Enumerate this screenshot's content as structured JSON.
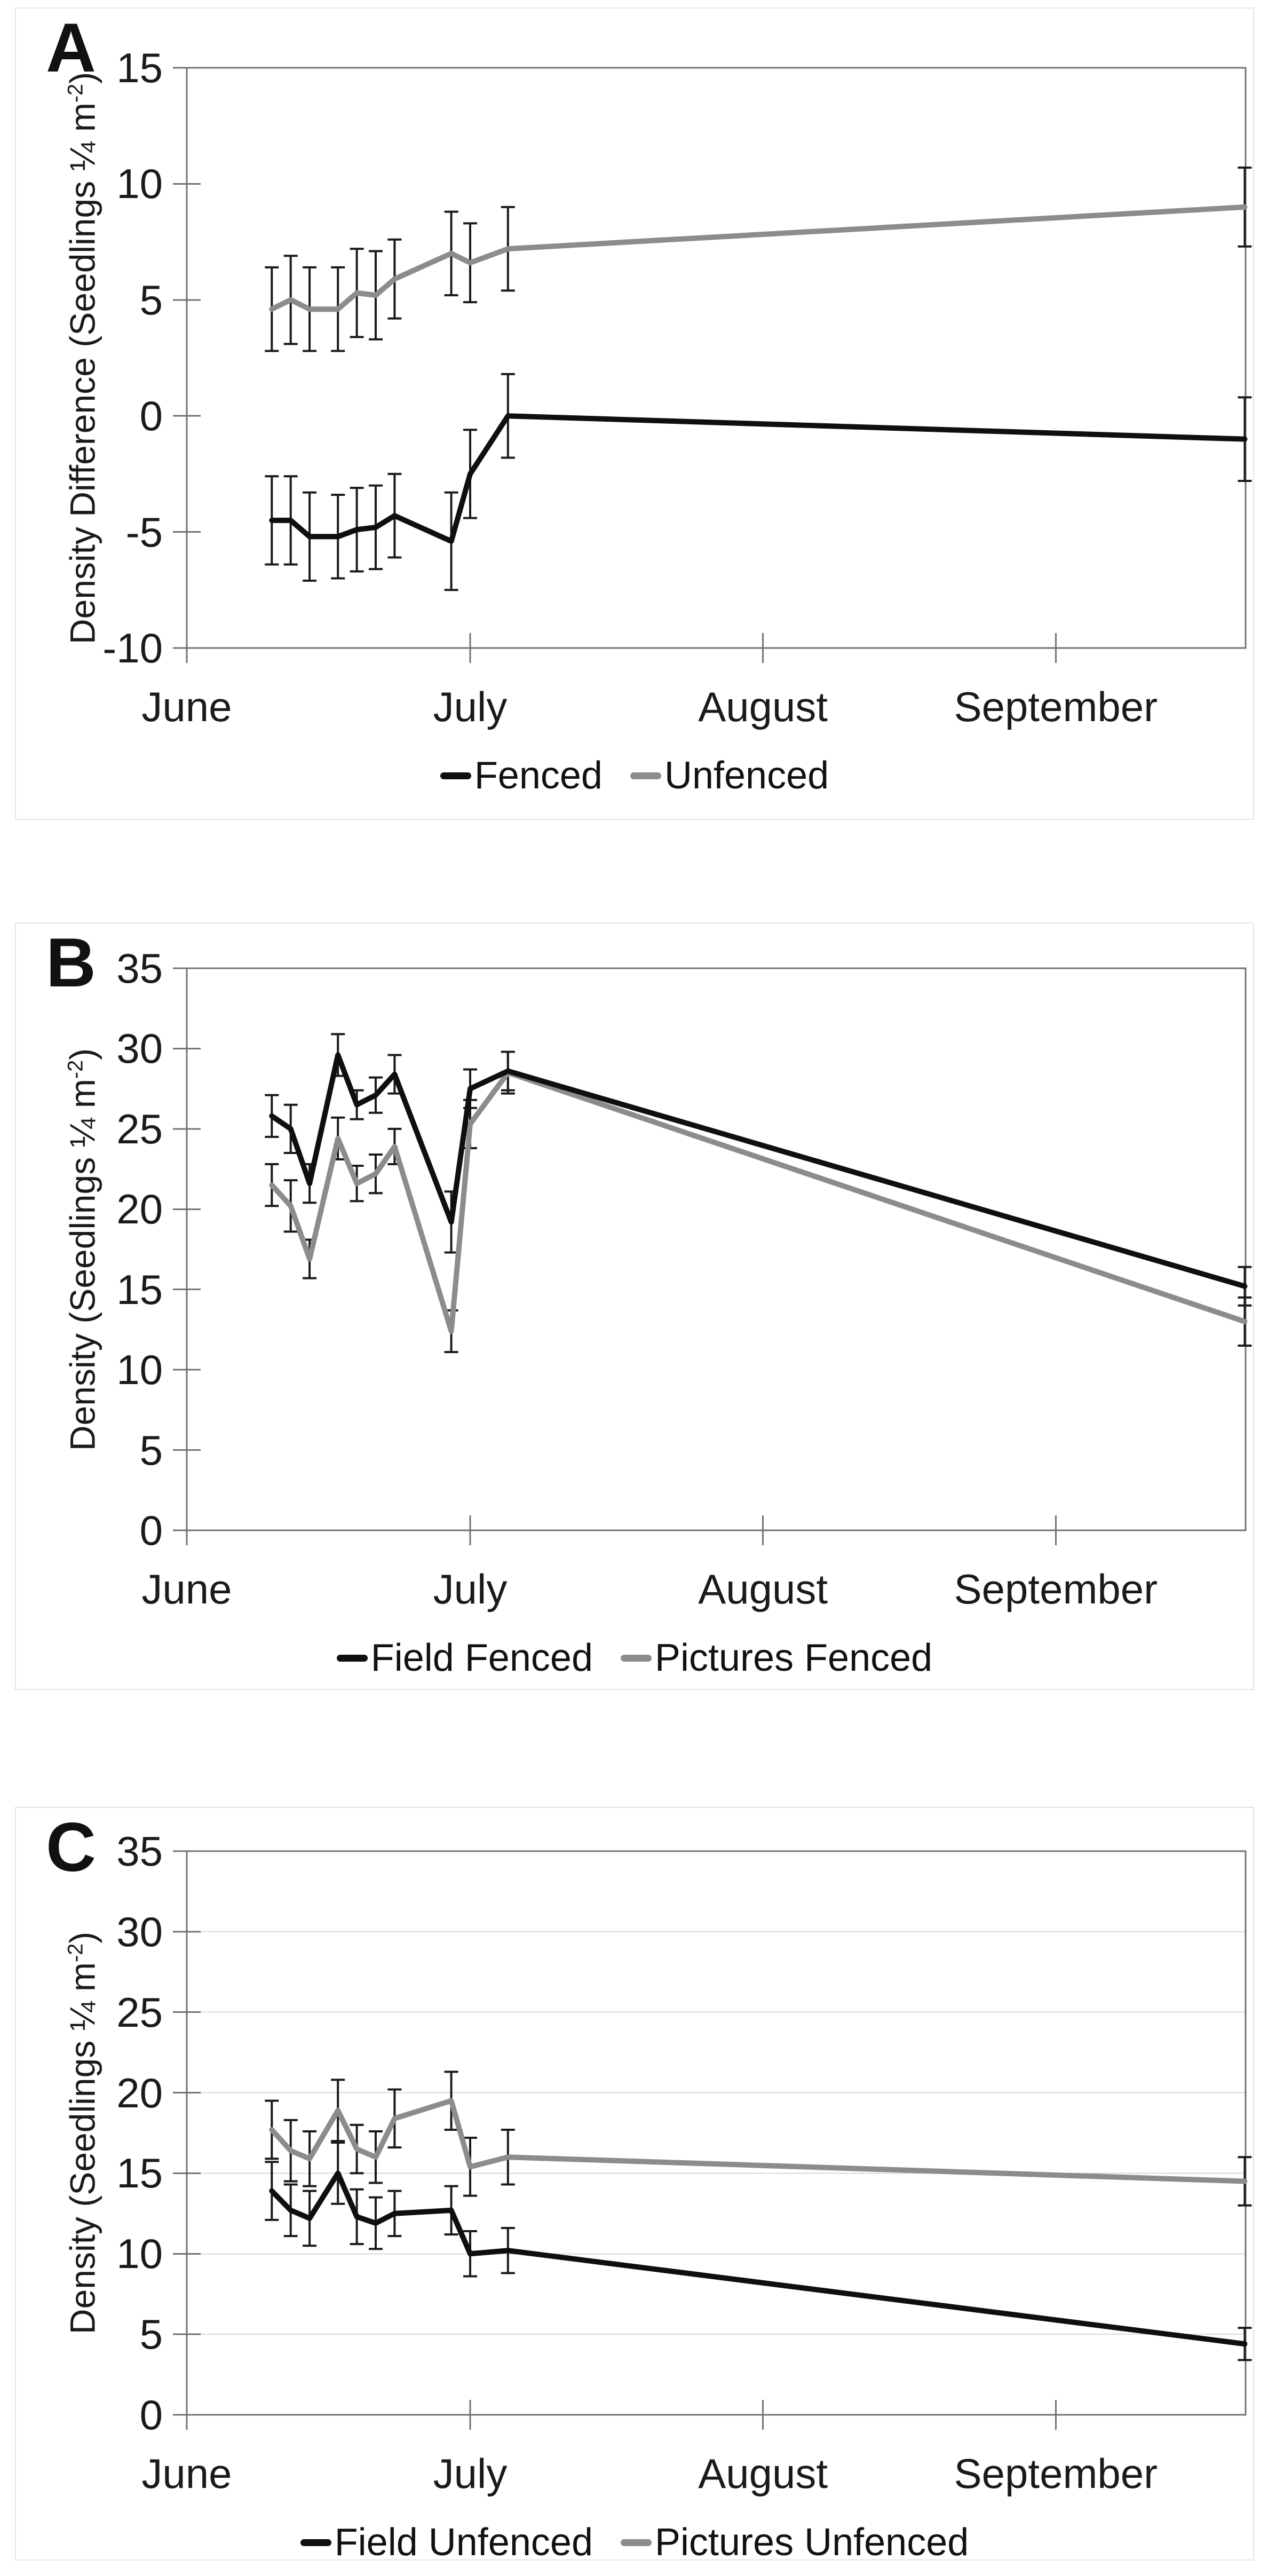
{
  "colors": {
    "series_black": "#0f0f0f",
    "series_gray": "#8c8c8c",
    "error_bar": "#1a1a1a",
    "axis_frame": "#737373",
    "gridline": "#d9d9d9",
    "panel_border": "#e4e4e4"
  },
  "chart_data": [
    {
      "panel_label": "A",
      "type": "line",
      "title": "",
      "xlabel": "",
      "ylabel": "Density Difference (Seedlings ¼ m⁻²)",
      "ylabel_prefix": "Density Difference (Seedlings ¼ m",
      "ylabel_sup": "-2",
      "ylabel_suffix": ")",
      "ylim": [
        -10,
        15
      ],
      "y_ticks": [
        15,
        10,
        5,
        0,
        -5,
        -10
      ],
      "x_tick_labels": [
        "June",
        "July",
        "August",
        "September"
      ],
      "x_tick_days": [
        0,
        30,
        61,
        92
      ],
      "x_days": [
        9,
        11,
        13,
        16,
        18,
        20,
        22,
        28,
        30,
        34,
        112
      ],
      "grid_values": [],
      "legend_position": "bottom",
      "series": [
        {
          "name": "Fenced",
          "color": "#0f0f0f",
          "values": [
            -4.5,
            -4.5,
            -5.2,
            -5.2,
            -4.9,
            -4.8,
            -4.3,
            -5.4,
            -2.5,
            0.0,
            -1.0
          ],
          "errors": [
            1.9,
            1.9,
            1.9,
            1.8,
            1.8,
            1.8,
            1.8,
            2.1,
            1.9,
            1.8,
            1.8
          ]
        },
        {
          "name": "Unfenced",
          "color": "#8c8c8c",
          "values": [
            4.6,
            5.0,
            4.6,
            4.6,
            5.3,
            5.2,
            5.9,
            7.0,
            6.6,
            7.2,
            9.0
          ],
          "errors": [
            1.8,
            1.9,
            1.8,
            1.8,
            1.9,
            1.9,
            1.7,
            1.8,
            1.7,
            1.8,
            1.7
          ]
        }
      ]
    },
    {
      "panel_label": "B",
      "type": "line",
      "title": "",
      "xlabel": "",
      "ylabel": "Density (Seedlings ¼ m⁻²)",
      "ylabel_prefix": "Density (Seedlings ¼ m",
      "ylabel_sup": "-2",
      "ylabel_suffix": ")",
      "ylim": [
        0,
        35
      ],
      "y_ticks": [
        35,
        30,
        25,
        20,
        15,
        10,
        5,
        0
      ],
      "x_tick_labels": [
        "June",
        "July",
        "August",
        "September"
      ],
      "x_tick_days": [
        0,
        30,
        61,
        92
      ],
      "x_days": [
        9,
        11,
        13,
        16,
        18,
        20,
        22,
        28,
        30,
        34,
        112
      ],
      "grid_values": [],
      "legend_position": "bottom",
      "series": [
        {
          "name": "Field Fenced",
          "color": "#0f0f0f",
          "values": [
            25.8,
            25.0,
            21.6,
            29.6,
            26.5,
            27.1,
            28.4,
            19.2,
            27.5,
            28.6,
            15.2
          ],
          "errors": [
            1.3,
            1.5,
            1.2,
            1.3,
            0.9,
            1.1,
            1.2,
            1.9,
            1.2,
            1.2,
            1.2
          ]
        },
        {
          "name": "Pictures Fenced",
          "color": "#8c8c8c",
          "values": [
            21.5,
            20.2,
            16.9,
            24.4,
            21.6,
            22.2,
            23.9,
            12.4,
            25.3,
            28.5,
            13.0
          ],
          "errors": [
            1.3,
            1.6,
            1.2,
            1.3,
            1.1,
            1.2,
            1.1,
            1.3,
            1.5,
            1.3,
            1.5
          ]
        }
      ]
    },
    {
      "panel_label": "C",
      "type": "line",
      "title": "",
      "xlabel": "",
      "ylabel": "Density (Seedlings ¼ m⁻²)",
      "ylabel_prefix": "Density (Seedlings ¼ m",
      "ylabel_sup": "-2",
      "ylabel_suffix": ")",
      "ylim": [
        0,
        35
      ],
      "y_ticks": [
        35,
        30,
        25,
        20,
        15,
        10,
        5,
        0
      ],
      "x_tick_labels": [
        "June",
        "July",
        "August",
        "September"
      ],
      "x_tick_days": [
        0,
        30,
        61,
        92
      ],
      "x_days": [
        9,
        11,
        13,
        16,
        18,
        20,
        22,
        28,
        30,
        34,
        112
      ],
      "grid_values": [
        5,
        10,
        15,
        20,
        25,
        30
      ],
      "legend_position": "bottom",
      "series": [
        {
          "name": "Field Unfenced",
          "color": "#0f0f0f",
          "values": [
            13.9,
            12.7,
            12.2,
            15.0,
            12.3,
            11.9,
            12.5,
            12.7,
            10.0,
            10.2,
            4.4
          ],
          "errors": [
            1.8,
            1.6,
            1.7,
            1.9,
            1.7,
            1.6,
            1.4,
            1.5,
            1.4,
            1.4,
            1.0
          ]
        },
        {
          "name": "Pictures Unfenced",
          "color": "#8c8c8c",
          "values": [
            17.7,
            16.4,
            15.9,
            18.9,
            16.5,
            16.0,
            18.4,
            19.5,
            15.4,
            16.0,
            14.5
          ],
          "errors": [
            1.8,
            1.9,
            1.7,
            1.9,
            1.5,
            1.6,
            1.8,
            1.8,
            1.8,
            1.7,
            1.5
          ]
        }
      ]
    }
  ]
}
